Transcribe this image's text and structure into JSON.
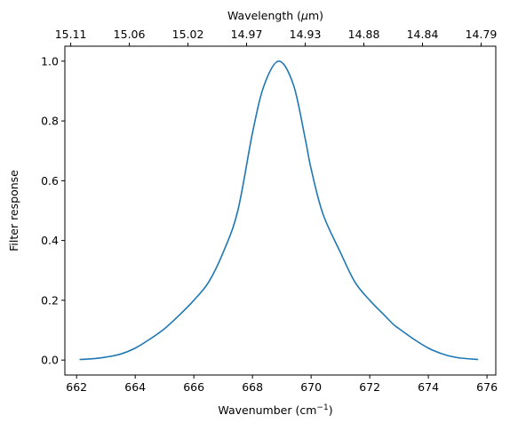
{
  "chart_data": {
    "type": "line",
    "xlabel_main": "Wavenumber (cm",
    "xlabel_sup": "−1",
    "xlabel_end": ")",
    "ylabel": "Filter response",
    "top_xlabel_pre": "Wavelength (",
    "top_xlabel_mu": "μ",
    "top_xlabel_post": "m)",
    "xlim": [
      661.6,
      676.3
    ],
    "ylim": [
      -0.05,
      1.05
    ],
    "grid": false,
    "x_ticks": [
      662,
      664,
      666,
      668,
      670,
      672,
      674,
      676
    ],
    "x_tick_labels": [
      "662",
      "664",
      "666",
      "668",
      "670",
      "672",
      "674",
      "676"
    ],
    "y_ticks": [
      0.0,
      0.2,
      0.4,
      0.6,
      0.8,
      1.0
    ],
    "y_tick_labels": [
      "0.0",
      "0.2",
      "0.4",
      "0.6",
      "0.8",
      "1.0"
    ],
    "top_ticks": [
      {
        "x": 661.8,
        "label": "15.11"
      },
      {
        "x": 663.8,
        "label": "15.06"
      },
      {
        "x": 665.8,
        "label": "15.02"
      },
      {
        "x": 667.8,
        "label": "14.97"
      },
      {
        "x": 669.8,
        "label": "14.93"
      },
      {
        "x": 671.8,
        "label": "14.88"
      },
      {
        "x": 673.8,
        "label": "14.84"
      },
      {
        "x": 675.8,
        "label": "14.79"
      }
    ],
    "series": [
      {
        "color": "#1f77b4",
        "x": [
          662.1,
          662.5,
          663.0,
          663.5,
          664.0,
          664.5,
          665.0,
          665.5,
          666.0,
          666.5,
          667.0,
          667.5,
          668.0,
          668.4,
          668.9,
          669.4,
          669.8,
          670.0,
          670.4,
          671.0,
          671.5,
          672.0,
          672.5,
          672.8,
          673.0,
          673.5,
          674.0,
          674.5,
          675.0,
          675.7
        ],
        "y": [
          0.002,
          0.004,
          0.01,
          0.02,
          0.04,
          0.07,
          0.105,
          0.15,
          0.2,
          0.26,
          0.36,
          0.5,
          0.76,
          0.92,
          1.0,
          0.92,
          0.74,
          0.64,
          0.49,
          0.36,
          0.26,
          0.2,
          0.15,
          0.12,
          0.105,
          0.07,
          0.04,
          0.02,
          0.008,
          0.002
        ]
      }
    ]
  }
}
